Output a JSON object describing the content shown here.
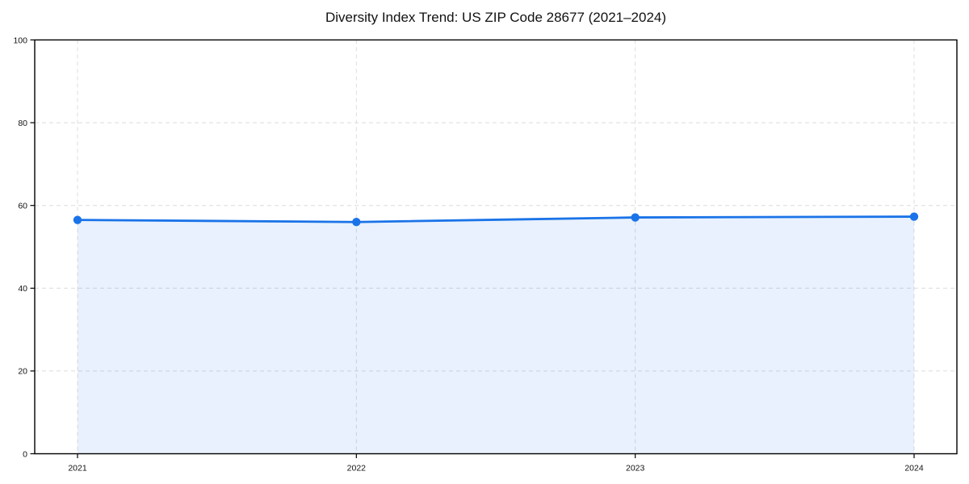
{
  "chart_data": {
    "type": "line",
    "title": "Diversity Index Trend: US ZIP Code 28677 (2021–2024)",
    "x": [
      "2021",
      "2022",
      "2023",
      "2024"
    ],
    "values": [
      56.5,
      56.0,
      57.1,
      57.3
    ],
    "ylim": [
      0,
      100
    ],
    "y_ticks": [
      0,
      20,
      40,
      60,
      80,
      100
    ],
    "grid": true,
    "grid_style": "dashed",
    "legend": "none",
    "line_color": "#1a73e8",
    "marker_color": "#1a73e8",
    "fill_color": "#1a73e8",
    "fill_opacity": 0.1,
    "grid_color": "#dcdcdc",
    "axis_color": "#000000"
  }
}
